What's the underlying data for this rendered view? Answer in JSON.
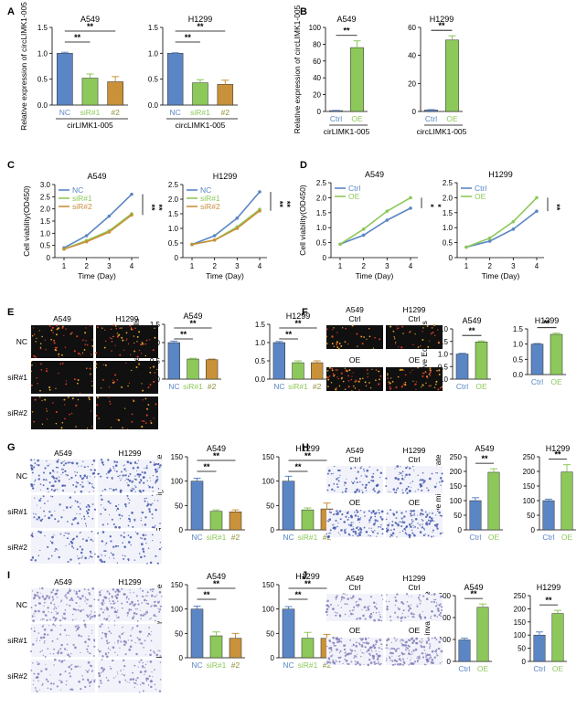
{
  "colors": {
    "blue": "#5b86c5",
    "green": "#8dc85a",
    "orange": "#c8913a",
    "olive": "#8f8f3f",
    "axis": "#000000",
    "micro_bg": "#101010",
    "stain_blue": "#3a4fa8"
  },
  "panel_letters": [
    "A",
    "B",
    "C",
    "D",
    "E",
    "F",
    "G",
    "H",
    "I",
    "J"
  ],
  "chart_data": [
    {
      "panel": "A",
      "type": "bar",
      "cell": "A549",
      "ylabel": "Relative expression of circLIMK1-005",
      "ylim": [
        0,
        1.5
      ],
      "yticks": [
        "0.0",
        "0.5",
        "1.0",
        "1.5"
      ],
      "categories": [
        "NC",
        "siR#1",
        "#2"
      ],
      "values": [
        1.0,
        0.52,
        0.45
      ],
      "errors": [
        0.02,
        0.08,
        0.1
      ],
      "group_label": "cirLIMK1-005",
      "sig": [
        "**",
        "**"
      ]
    },
    {
      "panel": "A",
      "type": "bar",
      "cell": "H1299",
      "ylim": [
        0,
        1.5
      ],
      "yticks": [
        "0.0",
        "0.5",
        "1.0",
        "1.5"
      ],
      "categories": [
        "NC",
        "siR#1",
        "#2"
      ],
      "values": [
        1.0,
        0.43,
        0.4
      ],
      "errors": [
        0.01,
        0.06,
        0.08
      ],
      "group_label": "circLIMK1-005",
      "sig": [
        "**",
        "**"
      ]
    },
    {
      "panel": "B",
      "type": "bar",
      "cell": "A549",
      "ylabel": "Relative expression of circLIMK1-005",
      "ylim": [
        0,
        100
      ],
      "yticks": [
        "0",
        "20",
        "40",
        "60",
        "80",
        "100"
      ],
      "categories": [
        "Ctrl",
        "OE"
      ],
      "values": [
        1,
        76
      ],
      "errors": [
        0.3,
        8
      ],
      "group_label": "cirLIMK1-005",
      "sig": [
        "**"
      ]
    },
    {
      "panel": "B",
      "type": "bar",
      "cell": "H1299",
      "ylim": [
        0,
        60
      ],
      "yticks": [
        "0",
        "20",
        "40",
        "60"
      ],
      "categories": [
        "Ctrl",
        "OE"
      ],
      "values": [
        1,
        51
      ],
      "errors": [
        0.3,
        3
      ],
      "group_label": "circLIMK1-005",
      "sig": [
        "**"
      ]
    },
    {
      "panel": "C",
      "type": "line",
      "cell": "A549",
      "ylabel": "Cell viability(OD450)",
      "xlabel": "Time (Day)",
      "x": [
        1,
        2,
        3,
        4
      ],
      "ylim": [
        0,
        3.0
      ],
      "yticks": [
        "0",
        "0.5",
        "1.0",
        "1.5",
        "2.0",
        "2.5",
        "3.0"
      ],
      "series": [
        {
          "name": "NC",
          "values": [
            0.4,
            0.9,
            1.7,
            2.6
          ]
        },
        {
          "name": "siR#1",
          "values": [
            0.35,
            0.7,
            1.1,
            1.8
          ]
        },
        {
          "name": "siR#2",
          "values": [
            0.35,
            0.65,
            1.05,
            1.75
          ]
        }
      ],
      "sig": [
        "**",
        "**"
      ]
    },
    {
      "panel": "C",
      "type": "line",
      "cell": "H1299",
      "xlabel": "Time (Day)",
      "x": [
        1,
        2,
        3,
        4
      ],
      "ylim": [
        0,
        2.5
      ],
      "yticks": [
        "0",
        "0.5",
        "1.0",
        "1.5",
        "2.0",
        "2.5"
      ],
      "series": [
        {
          "name": "NC",
          "values": [
            0.45,
            0.75,
            1.35,
            2.25
          ]
        },
        {
          "name": "siR#1",
          "values": [
            0.45,
            0.6,
            1.05,
            1.65
          ]
        },
        {
          "name": "siR#2",
          "values": [
            0.45,
            0.6,
            1.0,
            1.6
          ]
        }
      ],
      "sig": [
        "**",
        "**"
      ]
    },
    {
      "panel": "D",
      "type": "line",
      "cell": "A549",
      "ylabel": "Cell viability(OD450)",
      "xlabel": "Time (Day)",
      "x": [
        1,
        2,
        3,
        4
      ],
      "ylim": [
        0,
        2.5
      ],
      "yticks": [
        "0",
        "0.5",
        "1.0",
        "1.5",
        "2.0",
        "2.5"
      ],
      "series": [
        {
          "name": "Ctrl",
          "values": [
            0.45,
            0.75,
            1.25,
            1.65
          ]
        },
        {
          "name": "OE",
          "values": [
            0.45,
            0.95,
            1.55,
            2.0
          ]
        }
      ],
      "sig": [
        "*",
        "*"
      ]
    },
    {
      "panel": "D",
      "type": "line",
      "cell": "H1299",
      "xlabel": "Time (Day)",
      "x": [
        1,
        2,
        3,
        4
      ],
      "ylim": [
        0,
        2.5
      ],
      "yticks": [
        "0",
        "0.5",
        "1.0",
        "1.5",
        "2.0",
        "2.5"
      ],
      "series": [
        {
          "name": "Ctrl",
          "values": [
            0.35,
            0.55,
            0.95,
            1.55
          ]
        },
        {
          "name": "OE",
          "values": [
            0.35,
            0.65,
            1.2,
            2.0
          ]
        }
      ],
      "sig": [
        "**"
      ]
    },
    {
      "panel": "E",
      "type": "bar",
      "cell": "A549",
      "ylabel": "Relative Edu+ cells",
      "ylim": [
        0,
        1.5
      ],
      "yticks": [
        "0.0",
        "0.5",
        "1.0",
        "1.5"
      ],
      "categories": [
        "NC",
        "siR#1",
        "#2"
      ],
      "values": [
        1.0,
        0.55,
        0.53
      ],
      "errors": [
        0.04,
        0.02,
        0.02
      ],
      "sig": [
        "**",
        "**"
      ]
    },
    {
      "panel": "E",
      "type": "bar",
      "cell": "H1299",
      "ylim": [
        0,
        1.5
      ],
      "yticks": [
        "0.0",
        "0.5",
        "1.0",
        "1.5"
      ],
      "categories": [
        "NC",
        "siR#1",
        "#2"
      ],
      "values": [
        1.0,
        0.45,
        0.45
      ],
      "errors": [
        0.03,
        0.05,
        0.05
      ],
      "sig": [
        "**",
        "**"
      ]
    },
    {
      "panel": "F",
      "type": "bar",
      "cell": "A549",
      "ylabel": "Relative Edu+ cells",
      "ylim": [
        0,
        2.0
      ],
      "yticks": [
        "0.0",
        "0.5",
        "1.0",
        "1.5",
        "2.0"
      ],
      "categories": [
        "Ctrl",
        "OE"
      ],
      "values": [
        1.0,
        1.48
      ],
      "errors": [
        0.03,
        0.04
      ],
      "sig": [
        "**"
      ]
    },
    {
      "panel": "F",
      "type": "bar",
      "cell": "H1299",
      "ylim": [
        0,
        1.5
      ],
      "yticks": [
        "0.0",
        "0.5",
        "1.0",
        "1.5"
      ],
      "categories": [
        "Ctrl",
        "OE"
      ],
      "values": [
        1.0,
        1.32
      ],
      "errors": [
        0.02,
        0.04
      ],
      "sig": [
        "**"
      ]
    },
    {
      "panel": "G",
      "type": "bar",
      "cell": "A549",
      "ylabel": "Relative migration rate",
      "ylim": [
        0,
        150
      ],
      "yticks": [
        "0",
        "50",
        "100",
        "150"
      ],
      "categories": [
        "NC",
        "siR#1",
        "#2"
      ],
      "values": [
        100,
        38,
        37
      ],
      "errors": [
        6,
        3,
        4
      ],
      "sig": [
        "**",
        "**"
      ]
    },
    {
      "panel": "G",
      "type": "bar",
      "cell": "H1299",
      "ylim": [
        0,
        150
      ],
      "yticks": [
        "0",
        "50",
        "100",
        "150"
      ],
      "categories": [
        "NC",
        "siR#1",
        "#2"
      ],
      "values": [
        100,
        41,
        43
      ],
      "errors": [
        10,
        4,
        12
      ],
      "sig": [
        "**",
        "**"
      ]
    },
    {
      "panel": "H",
      "type": "bar",
      "cell": "A549",
      "ylabel": "Relative migration rate",
      "ylim": [
        0,
        250
      ],
      "yticks": [
        "0",
        "50",
        "100",
        "150",
        "200",
        "250"
      ],
      "categories": [
        "Ctrl",
        "OE"
      ],
      "values": [
        100,
        197
      ],
      "errors": [
        10,
        12
      ],
      "sig": [
        "**"
      ]
    },
    {
      "panel": "H",
      "type": "bar",
      "cell": "H1299",
      "ylim": [
        0,
        250
      ],
      "yticks": [
        "0",
        "50",
        "100",
        "150",
        "200",
        "250"
      ],
      "categories": [
        "Ctrl",
        "OE"
      ],
      "values": [
        100,
        198
      ],
      "errors": [
        5,
        25
      ],
      "sig": [
        "**"
      ]
    },
    {
      "panel": "I",
      "type": "bar",
      "cell": "A549",
      "ylabel": "Relative invasion rate",
      "ylim": [
        0,
        150
      ],
      "yticks": [
        "0",
        "50",
        "100",
        "150"
      ],
      "categories": [
        "NC",
        "siR#1",
        "#2"
      ],
      "values": [
        100,
        45,
        40
      ],
      "errors": [
        6,
        8,
        10
      ],
      "sig": [
        "**",
        "**"
      ]
    },
    {
      "panel": "I",
      "type": "bar",
      "cell": "H1299",
      "ylim": [
        0,
        150
      ],
      "yticks": [
        "0",
        "50",
        "100",
        "150"
      ],
      "categories": [
        "NC",
        "siR#1",
        "#2"
      ],
      "values": [
        100,
        40,
        40
      ],
      "errors": [
        5,
        12,
        8
      ],
      "sig": [
        "**",
        "**"
      ]
    },
    {
      "panel": "J",
      "type": "bar",
      "cell": "A549",
      "ylabel": "Relative invasion rate",
      "ylim": [
        0,
        300
      ],
      "yticks": [
        "0",
        "100",
        "200",
        "300"
      ],
      "categories": [
        "Ctrl",
        "OE"
      ],
      "values": [
        98,
        247
      ],
      "errors": [
        8,
        15
      ],
      "sig": [
        "**"
      ]
    },
    {
      "panel": "J",
      "type": "bar",
      "cell": "H1299",
      "ylim": [
        0,
        250
      ],
      "yticks": [
        "0",
        "50",
        "100",
        "150",
        "200",
        "250"
      ],
      "categories": [
        "Ctrl",
        "OE"
      ],
      "values": [
        100,
        182
      ],
      "errors": [
        12,
        12
      ],
      "sig": [
        "**"
      ]
    }
  ],
  "images": [
    {
      "panel": "E",
      "kind": "edu",
      "cols": [
        "A549",
        "H1299"
      ],
      "rows": [
        "NC",
        "siR#1",
        "siR#2"
      ]
    },
    {
      "panel": "F",
      "kind": "edu",
      "cols": [
        "A549\nCtrl",
        "H1299\nCtrl"
      ],
      "rows": [
        "",
        ""
      ],
      "midlabels": [
        "OE",
        "OE"
      ]
    },
    {
      "panel": "G",
      "kind": "transwell",
      "cols": [
        "A549",
        "H1299"
      ],
      "rows": [
        "NC",
        "siR#1",
        "siR#2"
      ]
    },
    {
      "panel": "H",
      "kind": "transwell",
      "cols": [
        "A549\nCtrl",
        "H1299\nCtrl"
      ],
      "rows": [
        "",
        ""
      ],
      "midlabels": [
        "OE",
        "OE"
      ]
    },
    {
      "panel": "I",
      "kind": "invasion",
      "cols": [
        "A549",
        "H1299"
      ],
      "rows": [
        "NC",
        "siR#1",
        "siR#2"
      ]
    },
    {
      "panel": "J",
      "kind": "invasion",
      "cols": [
        "A549\nCtrl",
        "H1299\nCtrl"
      ],
      "rows": [
        "",
        ""
      ],
      "midlabels": [
        "OE",
        "OE"
      ]
    }
  ]
}
